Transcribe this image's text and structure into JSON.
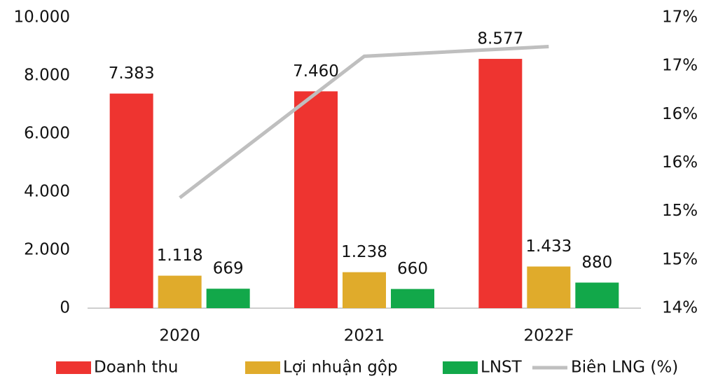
{
  "chart_data": {
    "type": "bar",
    "categories": [
      "2020",
      "2021",
      "2022F"
    ],
    "series": [
      {
        "name": "Doanh thu",
        "color": "#ee3430",
        "values": [
          7383,
          7460,
          8577
        ],
        "value_labels": [
          "7.383",
          "7.460",
          "8.577"
        ]
      },
      {
        "name": "Lợi nhuận gộp",
        "color": "#e0ab2b",
        "values": [
          1118,
          1238,
          1433
        ],
        "value_labels": [
          "1.118",
          "1.238",
          "1.433"
        ]
      },
      {
        "name": "LNST",
        "color": "#12a84a",
        "values": [
          669,
          660,
          880
        ],
        "value_labels": [
          "669",
          "660",
          "880"
        ]
      },
      {
        "name": "Biên LNG (%)",
        "color": "#bfbfbf",
        "type": "line",
        "axis": "y2",
        "values": [
          15.14,
          16.6,
          16.7
        ]
      }
    ],
    "ylim": [
      0,
      10000
    ],
    "yticks": [
      0,
      {
        "value": 2000,
        "label": "2.000"
      },
      {
        "value": 4000,
        "label": "4.000"
      },
      {
        "value": 6000,
        "label": "6.000"
      },
      {
        "value": 8000,
        "label": "8.000"
      },
      {
        "value": 10000,
        "label": "10.000"
      }
    ],
    "y2lim": [
      14,
      17
    ],
    "y2ticks": [
      {
        "value": 14,
        "label": "14%"
      },
      {
        "value": 14.5,
        "label": "15%"
      },
      {
        "value": 15,
        "label": "15%"
      },
      {
        "value": 15.5,
        "label": "16%"
      },
      {
        "value": 16,
        "label": "16%"
      },
      {
        "value": 16.5,
        "label": "17%"
      },
      {
        "value": 17,
        "label": "17%"
      }
    ],
    "legend": "bottom"
  }
}
